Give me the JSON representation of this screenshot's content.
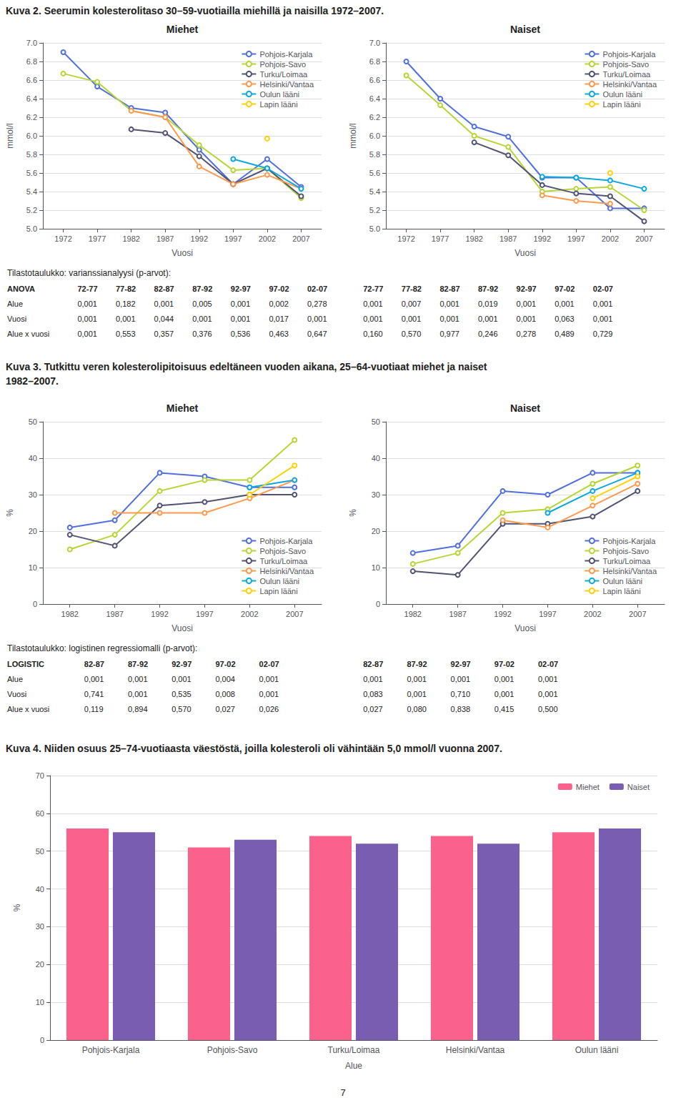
{
  "annotations": [
    "Kuva 2. Seerumin kolesterolitaso 30–59-vuotiailla miehillä ja naisilla 1972–2007.",
    "Kuva 3. Tutkittu veren kolesterolipitoisuus edeltäneen vuoden aikana, 25–64-vuotiaat miehet ja naiset",
    "1982–2007.",
    "Kuva 4. Niiden osuus 25–74-vuotiaasta väestöstä, joilla kolesteroli oli vähintään 5,0 mmol/l vuonna 2007.",
    "7"
  ],
  "tables": [
    {
      "title": "Tilastotaulukko: varianssianalyysi (p-arvot):",
      "men_headers": [
        "ANOVA",
        "72-77",
        "77-82",
        "82-87",
        "87-92",
        "92-97",
        "97-02",
        "02-07"
      ],
      "men_rows": [
        [
          "Alue",
          "0,001",
          "0,182",
          "0,001",
          "0,005",
          "0,001",
          "0,002",
          "0,278"
        ],
        [
          "Vuosi",
          "0,001",
          "0,001",
          "0,044",
          "0,001",
          "0,001",
          "0,017",
          "0,001"
        ],
        [
          "Alue x vuosi",
          "0,001",
          "0,553",
          "0,357",
          "0,376",
          "0,536",
          "0,463",
          "0,647"
        ]
      ],
      "women_headers": [
        "72-77",
        "77-82",
        "82-87",
        "87-92",
        "92-97",
        "97-02",
        "02-07"
      ],
      "women_rows": [
        [
          "0,001",
          "0,007",
          "0,001",
          "0,019",
          "0,001",
          "0,001",
          "0,001"
        ],
        [
          "0,001",
          "0,001",
          "0,001",
          "0,001",
          "0,001",
          "0,063",
          "0,001"
        ],
        [
          "0,160",
          "0,570",
          "0,977",
          "0,246",
          "0,278",
          "0,489",
          "0,729"
        ]
      ]
    },
    {
      "title": "Tilastotaulukko: logistinen regressiomalli (p-arvot):",
      "men_headers": [
        "LOGISTIC",
        "82-87",
        "87-92",
        "92-97",
        "97-02",
        "02-07"
      ],
      "men_rows": [
        [
          "Alue",
          "0,001",
          "0,001",
          "0,001",
          "0,004",
          "0,001"
        ],
        [
          "Vuosi",
          "0,741",
          "0,001",
          "0,535",
          "0,008",
          "0,001"
        ],
        [
          "Alue x vuosi",
          "0,119",
          "0,894",
          "0,570",
          "0,027",
          "0,026"
        ]
      ],
      "women_headers": [
        "82-87",
        "87-92",
        "92-97",
        "97-02",
        "02-07"
      ],
      "women_rows": [
        [
          "0,001",
          "0,001",
          "0,001",
          "0,001",
          "0,001"
        ],
        [
          "0,083",
          "0,001",
          "0,710",
          "0,001",
          "0,001"
        ],
        [
          "0,027",
          "0,080",
          "0,838",
          "0,415",
          "0,500"
        ]
      ]
    }
  ],
  "chart_data": [
    {
      "type": "line",
      "title": "Miehet",
      "xlabel": "Vuosi",
      "ylabel": "mmol/l",
      "x": [
        1972,
        1977,
        1982,
        1987,
        1992,
        1997,
        2002,
        2007
      ],
      "xlim": [
        1969,
        2010
      ],
      "xticks": [
        1972,
        1977,
        1982,
        1987,
        1992,
        1997,
        2002,
        2007
      ],
      "ylim": [
        5.0,
        7.0
      ],
      "yticks": [
        {
          "value": 5.0,
          "label": "5.0"
        },
        5.2,
        5.4,
        5.6,
        5.8,
        {
          "value": 6.0,
          "label": "6.0"
        },
        6.2,
        6.4,
        6.6,
        6.8,
        {
          "value": 7.0,
          "label": "7.0"
        }
      ],
      "grid": true,
      "legend": "upper right",
      "series": [
        {
          "name": "Pohjois-Karjala",
          "values": [
            6.9,
            6.53,
            6.3,
            6.25,
            5.85,
            5.48,
            5.75,
            5.45
          ]
        },
        {
          "name": "Pohjois-Savo",
          "values": [
            6.67,
            6.58,
            6.27,
            6.2,
            5.9,
            5.63,
            5.65,
            5.33
          ]
        },
        {
          "name": "Turku/Loimaa",
          "values": [
            null,
            null,
            6.07,
            6.03,
            5.78,
            5.48,
            5.65,
            5.35
          ]
        },
        {
          "name": "Helsinki/Vantaa",
          "values": [
            null,
            null,
            6.27,
            6.2,
            5.67,
            5.48,
            5.58,
            5.43
          ]
        },
        {
          "name": "Oulun lääni",
          "values": [
            null,
            null,
            null,
            null,
            null,
            5.75,
            5.65,
            5.43
          ]
        },
        {
          "name": "Lapin lääni",
          "values": [
            null,
            null,
            null,
            null,
            null,
            null,
            5.97,
            null
          ]
        }
      ]
    },
    {
      "type": "line",
      "title": "Naiset",
      "xlabel": "Vuosi",
      "ylabel": "mmol/l",
      "x": [
        1972,
        1977,
        1982,
        1987,
        1992,
        1997,
        2002,
        2007
      ],
      "xlim": [
        1969,
        2010
      ],
      "xticks": [
        1972,
        1977,
        1982,
        1987,
        1992,
        1997,
        2002,
        2007
      ],
      "ylim": [
        5.0,
        7.0
      ],
      "yticks": [
        {
          "value": 5.0,
          "label": "5.0"
        },
        5.2,
        5.4,
        5.6,
        5.8,
        {
          "value": 6.0,
          "label": "6.0"
        },
        6.2,
        6.4,
        6.6,
        6.8,
        {
          "value": 7.0,
          "label": "7.0"
        }
      ],
      "grid": true,
      "legend": "upper right",
      "series": [
        {
          "name": "Pohjois-Karjala",
          "values": [
            6.8,
            6.4,
            6.1,
            5.99,
            5.55,
            5.55,
            5.22,
            5.22
          ]
        },
        {
          "name": "Pohjois-Savo",
          "values": [
            6.65,
            6.33,
            6.0,
            5.88,
            5.4,
            5.43,
            5.45,
            5.2
          ]
        },
        {
          "name": "Turku/Loimaa",
          "values": [
            null,
            null,
            5.93,
            5.79,
            5.47,
            5.38,
            5.35,
            5.08
          ]
        },
        {
          "name": "Helsinki/Vantaa",
          "values": [
            null,
            null,
            null,
            null,
            5.36,
            5.3,
            5.27,
            null
          ]
        },
        {
          "name": "Oulun lääni",
          "values": [
            null,
            null,
            null,
            null,
            5.56,
            5.55,
            5.52,
            5.43
          ]
        },
        {
          "name": "Lapin lääni",
          "values": [
            null,
            null,
            null,
            null,
            null,
            null,
            5.6,
            null
          ]
        }
      ]
    },
    {
      "type": "line",
      "title": "Miehet",
      "xlabel": "Vuosi",
      "ylabel": "%",
      "x": [
        1982,
        1987,
        1992,
        1997,
        2002,
        2007
      ],
      "xlim": [
        1979,
        2010
      ],
      "xticks": [
        1982,
        1987,
        1992,
        1997,
        2002,
        2007
      ],
      "ylim": [
        0,
        50
      ],
      "yticks": [
        0,
        10,
        20,
        30,
        40,
        50
      ],
      "grid": true,
      "legend": "lower right",
      "series": [
        {
          "name": "Pohjois-Karjala",
          "values": [
            21,
            23,
            36,
            35,
            32,
            32
          ]
        },
        {
          "name": "Pohjois-Savo",
          "values": [
            15,
            19,
            31,
            34,
            34,
            45
          ]
        },
        {
          "name": "Turku/Loimaa",
          "values": [
            19,
            16,
            27,
            28,
            30,
            30
          ]
        },
        {
          "name": "Helsinki/Vantaa",
          "values": [
            null,
            25,
            25,
            25,
            29,
            34
          ]
        },
        {
          "name": "Oulun lääni",
          "values": [
            null,
            null,
            null,
            null,
            32,
            34
          ]
        },
        {
          "name": "Lapin lääni",
          "values": [
            null,
            null,
            null,
            null,
            30,
            38
          ]
        }
      ]
    },
    {
      "type": "line",
      "title": "Naiset",
      "xlabel": "Vuosi",
      "ylabel": "%",
      "x": [
        1982,
        1987,
        1992,
        1997,
        2002,
        2007
      ],
      "xlim": [
        1979,
        2010
      ],
      "xticks": [
        1982,
        1987,
        1992,
        1997,
        2002,
        2007
      ],
      "ylim": [
        0,
        50
      ],
      "yticks": [
        0,
        10,
        20,
        30,
        40,
        50
      ],
      "grid": true,
      "legend": "lower right",
      "series": [
        {
          "name": "Pohjois-Karjala",
          "values": [
            14,
            16,
            31,
            30,
            36,
            36
          ]
        },
        {
          "name": "Pohjois-Savo",
          "values": [
            11,
            14,
            25,
            26,
            33,
            38
          ]
        },
        {
          "name": "Turku/Loimaa",
          "values": [
            9,
            8,
            22,
            22,
            24,
            31
          ]
        },
        {
          "name": "Helsinki/Vantaa",
          "values": [
            null,
            null,
            23,
            21,
            27,
            33
          ]
        },
        {
          "name": "Oulun lääni",
          "values": [
            null,
            null,
            null,
            25,
            31,
            36
          ]
        },
        {
          "name": "Lapin lääni",
          "values": [
            null,
            null,
            null,
            null,
            29,
            35
          ]
        }
      ]
    },
    {
      "type": "bar",
      "xlabel": "Alue",
      "ylabel": "%",
      "categories": [
        "Pohjois-Karjala",
        "Pohjois-Savo",
        "Turku/Loimaa",
        "Helsinki/Vantaa",
        "Oulun lääni"
      ],
      "ylim": [
        0,
        70
      ],
      "yticks": [
        0,
        10,
        20,
        30,
        40,
        50,
        60,
        70
      ],
      "grid": true,
      "legend": "upper right",
      "series": [
        {
          "name": "Miehet",
          "values": [
            56,
            51,
            54,
            54,
            55
          ]
        },
        {
          "name": "Naiset",
          "values": [
            55,
            53,
            52,
            52,
            56
          ]
        }
      ]
    }
  ]
}
